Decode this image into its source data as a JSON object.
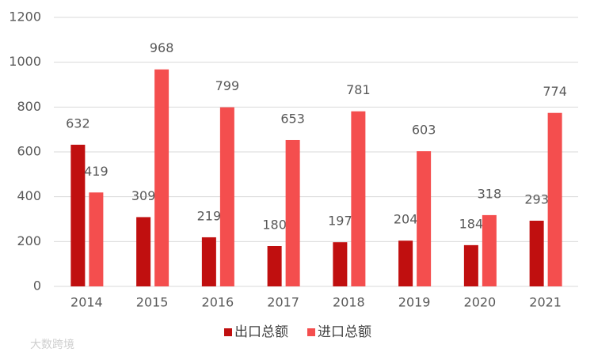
{
  "chart_data": {
    "type": "bar",
    "categories": [
      "2014",
      "2015",
      "2016",
      "2017",
      "2018",
      "2019",
      "2020",
      "2021"
    ],
    "series": [
      {
        "name": "出口总额",
        "color": "#c00f0f",
        "values": [
          632,
          309,
          219,
          180,
          197,
          204,
          184,
          293
        ]
      },
      {
        "name": "进口总额",
        "color": "#f44e4e",
        "values": [
          419,
          968,
          799,
          653,
          781,
          603,
          318,
          774
        ]
      }
    ],
    "ylim": [
      0,
      1200
    ],
    "yticks": [
      0,
      200,
      400,
      600,
      800,
      1000,
      1200
    ],
    "grid": true,
    "legend": "bottom",
    "watermark": "大数跨境"
  }
}
